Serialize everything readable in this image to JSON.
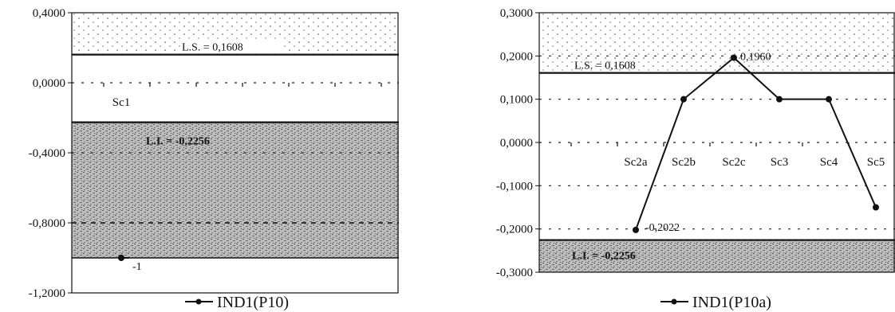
{
  "chart_data": [
    {
      "type": "line",
      "title": "",
      "xlabel": "",
      "ylabel": "",
      "ylim": [
        -1.2,
        0.4
      ],
      "y_ticks": [
        "0,4000",
        "0,0000",
        "-0,4000",
        "-0,8000",
        "-1,2000"
      ],
      "categories": [
        "Sc1"
      ],
      "series": [
        {
          "name": "IND1(P10)",
          "values": [
            -1.0
          ],
          "point_labels": [
            "-1"
          ]
        }
      ],
      "limits": [
        {
          "label": "L.S. = 0,1608",
          "value": 0.1608
        },
        {
          "label": "L.I. = -0,2256",
          "value": -0.2256
        }
      ],
      "extra_lines": [
        -0.8,
        -1.0
      ],
      "grid": true,
      "legend_position": "bottom",
      "colors": {
        "line": "#111111",
        "band": "#8a8a8a"
      }
    },
    {
      "type": "line",
      "title": "",
      "xlabel": "",
      "ylabel": "",
      "ylim": [
        -0.3,
        0.3
      ],
      "y_ticks": [
        "0,3000",
        "0,2000",
        "0,1000",
        "0,0000",
        "-0,1000",
        "-0,2000",
        "-0,3000"
      ],
      "categories": [
        "Sc2a",
        "Sc2b",
        "Sc2c",
        "Sc3",
        "Sc4",
        "Sc5"
      ],
      "series": [
        {
          "name": "IND1(P10a)",
          "values": [
            -0.2022,
            0.1,
            0.196,
            0.1,
            0.1,
            -0.15
          ],
          "point_labels": [
            "-0,2022",
            "",
            "0,1960",
            "",
            "",
            ""
          ]
        }
      ],
      "limits": [
        {
          "label": "L.S. = 0,1608",
          "value": 0.1608
        },
        {
          "label": "L.I. = -0,2256",
          "value": -0.2256
        }
      ],
      "grid": true,
      "legend_position": "bottom",
      "colors": {
        "line": "#111111",
        "band": "#8a8a8a"
      }
    }
  ]
}
